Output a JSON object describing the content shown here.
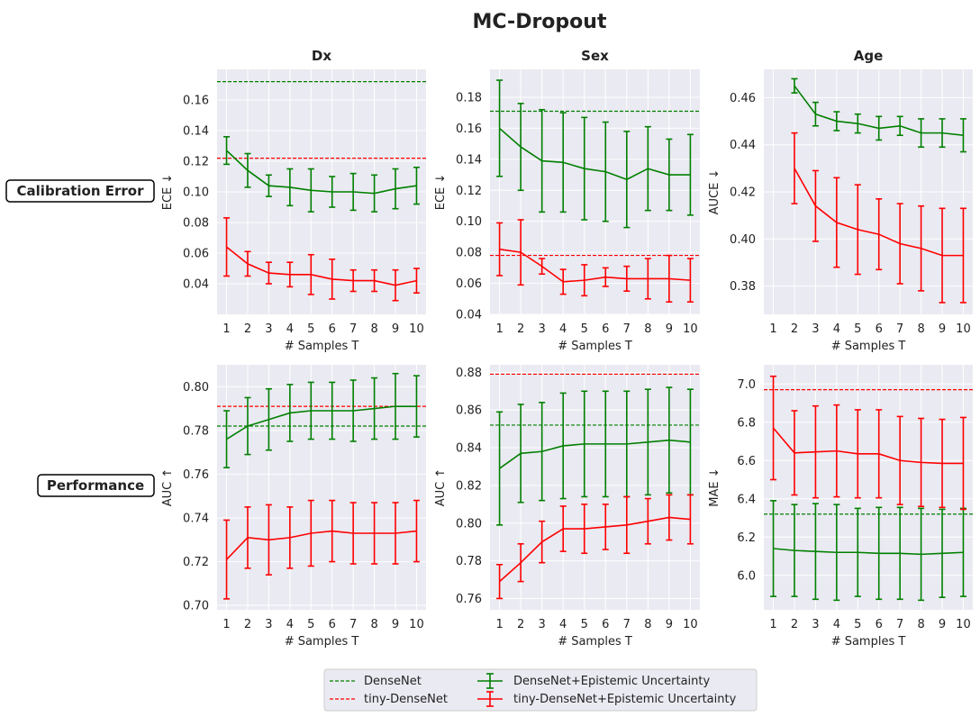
{
  "figure_title": "MC-Dropout",
  "row_labels": [
    "Calibration Error",
    "Performance"
  ],
  "legend": [
    {
      "label": "DenseNet",
      "style": "dashed",
      "color": "#008000"
    },
    {
      "label": "tiny-DenseNet",
      "style": "dashed",
      "color": "#ff0000"
    },
    {
      "label": "DenseNet+Epistemic Uncertainty",
      "style": "errorbar",
      "color": "#008000"
    },
    {
      "label": "tiny-DenseNet+Epistemic Uncertainty",
      "style": "errorbar",
      "color": "#ff0000"
    }
  ],
  "colors": {
    "densenet": "#008000",
    "tiny": "#ff0000",
    "panel_bg": "#eaeaf2",
    "grid": "#ffffff"
  },
  "chart_data": [
    {
      "type": "line",
      "title": "Dx",
      "xlabel": "# Samples T",
      "ylabel": "ECE ↓",
      "x": [
        1,
        2,
        3,
        4,
        5,
        6,
        7,
        8,
        9,
        10
      ],
      "ylim": [
        0.02,
        0.18
      ],
      "yticks": [
        0.04,
        0.06,
        0.08,
        0.1,
        0.12,
        0.14,
        0.16
      ],
      "ytick_labels": [
        "0.04",
        "0.06",
        "0.08",
        "0.10",
        "0.12",
        "0.14",
        "0.16"
      ],
      "reference_lines": [
        {
          "name": "DenseNet",
          "value": 0.172,
          "color": "#008000"
        },
        {
          "name": "tiny-DenseNet",
          "value": 0.122,
          "color": "#ff0000"
        }
      ],
      "series": [
        {
          "name": "DenseNet+Epistemic Uncertainty",
          "color": "#008000",
          "values": [
            0.127,
            0.114,
            0.104,
            0.103,
            0.101,
            0.1,
            0.1,
            0.099,
            0.102,
            0.104
          ],
          "errors": [
            0.009,
            0.011,
            0.007,
            0.012,
            0.014,
            0.01,
            0.012,
            0.012,
            0.013,
            0.012
          ]
        },
        {
          "name": "tiny-DenseNet+Epistemic Uncertainty",
          "color": "#ff0000",
          "values": [
            0.064,
            0.053,
            0.047,
            0.046,
            0.046,
            0.043,
            0.042,
            0.042,
            0.039,
            0.042
          ],
          "errors": [
            0.019,
            0.008,
            0.007,
            0.008,
            0.013,
            0.013,
            0.007,
            0.007,
            0.01,
            0.008
          ]
        }
      ]
    },
    {
      "type": "line",
      "title": "Sex",
      "xlabel": "# Samples T",
      "ylabel": "ECE ↓",
      "x": [
        1,
        2,
        3,
        4,
        5,
        6,
        7,
        8,
        9,
        10
      ],
      "ylim": [
        0.04,
        0.198
      ],
      "yticks": [
        0.04,
        0.06,
        0.08,
        0.1,
        0.12,
        0.14,
        0.16,
        0.18
      ],
      "ytick_labels": [
        "0.04",
        "0.06",
        "0.08",
        "0.10",
        "0.12",
        "0.14",
        "0.16",
        "0.18"
      ],
      "reference_lines": [
        {
          "name": "DenseNet",
          "value": 0.171,
          "color": "#008000"
        },
        {
          "name": "tiny-DenseNet",
          "value": 0.078,
          "color": "#ff0000"
        }
      ],
      "series": [
        {
          "name": "DenseNet+Epistemic Uncertainty",
          "color": "#008000",
          "values": [
            0.16,
            0.148,
            0.139,
            0.138,
            0.134,
            0.132,
            0.127,
            0.134,
            0.13,
            0.13
          ],
          "errors": [
            0.031,
            0.028,
            0.033,
            0.032,
            0.033,
            0.032,
            0.031,
            0.027,
            0.023,
            0.026
          ]
        },
        {
          "name": "tiny-DenseNet+Epistemic Uncertainty",
          "color": "#ff0000",
          "values": [
            0.082,
            0.08,
            0.071,
            0.061,
            0.062,
            0.064,
            0.063,
            0.063,
            0.063,
            0.062
          ],
          "errors": [
            0.017,
            0.021,
            0.005,
            0.008,
            0.01,
            0.006,
            0.008,
            0.013,
            0.015,
            0.014
          ]
        }
      ]
    },
    {
      "type": "line",
      "title": "Age",
      "xlabel": "# Samples T",
      "ylabel": "AUCE ↓",
      "x": [
        1,
        2,
        3,
        4,
        5,
        6,
        7,
        8,
        9,
        10
      ],
      "ylim": [
        0.368,
        0.472
      ],
      "yticks": [
        0.38,
        0.4,
        0.42,
        0.44,
        0.46
      ],
      "ytick_labels": [
        "0.38",
        "0.40",
        "0.42",
        "0.44",
        "0.46"
      ],
      "reference_lines": [],
      "series": [
        {
          "name": "DenseNet+Epistemic Uncertainty",
          "color": "#008000",
          "x": [
            2,
            3,
            4,
            5,
            6,
            7,
            8,
            9,
            10
          ],
          "values": [
            0.465,
            0.453,
            0.45,
            0.449,
            0.447,
            0.448,
            0.445,
            0.445,
            0.444
          ],
          "errors": [
            0.003,
            0.005,
            0.004,
            0.004,
            0.005,
            0.004,
            0.006,
            0.006,
            0.007
          ]
        },
        {
          "name": "tiny-DenseNet+Epistemic Uncertainty",
          "color": "#ff0000",
          "x": [
            2,
            3,
            4,
            5,
            6,
            7,
            8,
            9,
            10
          ],
          "values": [
            0.43,
            0.414,
            0.407,
            0.404,
            0.402,
            0.398,
            0.396,
            0.393,
            0.393
          ],
          "errors": [
            0.015,
            0.015,
            0.019,
            0.019,
            0.015,
            0.017,
            0.018,
            0.02,
            0.02
          ]
        }
      ]
    },
    {
      "type": "line",
      "title": "",
      "xlabel": "# Samples T",
      "ylabel": "AUC ↑",
      "x": [
        1,
        2,
        3,
        4,
        5,
        6,
        7,
        8,
        9,
        10
      ],
      "ylim": [
        0.698,
        0.81
      ],
      "yticks": [
        0.7,
        0.72,
        0.74,
        0.76,
        0.78,
        0.8
      ],
      "ytick_labels": [
        "0.70",
        "0.72",
        "0.74",
        "0.76",
        "0.78",
        "0.80"
      ],
      "reference_lines": [
        {
          "name": "DenseNet",
          "value": 0.782,
          "color": "#008000"
        },
        {
          "name": "tiny-DenseNet",
          "value": 0.791,
          "color": "#ff0000"
        }
      ],
      "series": [
        {
          "name": "DenseNet+Epistemic Uncertainty",
          "color": "#008000",
          "values": [
            0.776,
            0.782,
            0.785,
            0.788,
            0.789,
            0.789,
            0.789,
            0.79,
            0.791,
            0.791
          ],
          "errors": [
            0.013,
            0.013,
            0.014,
            0.013,
            0.013,
            0.013,
            0.014,
            0.014,
            0.015,
            0.014
          ]
        },
        {
          "name": "tiny-DenseNet+Epistemic Uncertainty",
          "color": "#ff0000",
          "values": [
            0.721,
            0.731,
            0.73,
            0.731,
            0.733,
            0.734,
            0.733,
            0.733,
            0.733,
            0.734
          ],
          "errors": [
            0.018,
            0.014,
            0.016,
            0.014,
            0.015,
            0.014,
            0.014,
            0.014,
            0.014,
            0.014
          ]
        }
      ]
    },
    {
      "type": "line",
      "title": "",
      "xlabel": "# Samples T",
      "ylabel": "AUC ↑",
      "x": [
        1,
        2,
        3,
        4,
        5,
        6,
        7,
        8,
        9,
        10
      ],
      "ylim": [
        0.754,
        0.884
      ],
      "yticks": [
        0.76,
        0.78,
        0.8,
        0.82,
        0.84,
        0.86,
        0.88
      ],
      "ytick_labels": [
        "0.76",
        "0.78",
        "0.80",
        "0.82",
        "0.84",
        "0.86",
        "0.88"
      ],
      "reference_lines": [
        {
          "name": "DenseNet",
          "value": 0.852,
          "color": "#008000"
        },
        {
          "name": "tiny-DenseNet",
          "value": 0.879,
          "color": "#ff0000"
        }
      ],
      "series": [
        {
          "name": "DenseNet+Epistemic Uncertainty",
          "color": "#008000",
          "values": [
            0.829,
            0.837,
            0.838,
            0.841,
            0.842,
            0.842,
            0.842,
            0.843,
            0.844,
            0.843
          ],
          "errors": [
            0.03,
            0.026,
            0.026,
            0.028,
            0.028,
            0.028,
            0.028,
            0.028,
            0.028,
            0.028
          ]
        },
        {
          "name": "tiny-DenseNet+Epistemic Uncertainty",
          "color": "#ff0000",
          "values": [
            0.769,
            0.779,
            0.79,
            0.797,
            0.797,
            0.798,
            0.799,
            0.801,
            0.803,
            0.802
          ],
          "errors": [
            0.009,
            0.01,
            0.011,
            0.012,
            0.013,
            0.012,
            0.015,
            0.012,
            0.012,
            0.013
          ]
        }
      ]
    },
    {
      "type": "line",
      "title": "",
      "xlabel": "# Samples T",
      "ylabel": "MAE ↓",
      "x": [
        1,
        2,
        3,
        4,
        5,
        6,
        7,
        8,
        9,
        10
      ],
      "ylim": [
        5.82,
        7.1
      ],
      "yticks": [
        6.0,
        6.2,
        6.4,
        6.6,
        6.8,
        7.0
      ],
      "ytick_labels": [
        "6.0",
        "6.2",
        "6.4",
        "6.6",
        "6.8",
        "7.0"
      ],
      "reference_lines": [
        {
          "name": "DenseNet",
          "value": 6.32,
          "color": "#008000"
        },
        {
          "name": "tiny-DenseNet",
          "value": 6.97,
          "color": "#ff0000"
        }
      ],
      "series": [
        {
          "name": "DenseNet+Epistemic Uncertainty",
          "color": "#008000",
          "values": [
            6.14,
            6.13,
            6.125,
            6.12,
            6.12,
            6.115,
            6.115,
            6.11,
            6.115,
            6.12
          ],
          "errors": [
            0.25,
            0.24,
            0.25,
            0.25,
            0.23,
            0.24,
            0.24,
            0.24,
            0.23,
            0.23
          ]
        },
        {
          "name": "tiny-DenseNet+Epistemic Uncertainty",
          "color": "#ff0000",
          "values": [
            6.77,
            6.64,
            6.645,
            6.65,
            6.635,
            6.635,
            6.6,
            6.59,
            6.585,
            6.585
          ],
          "errors": [
            0.27,
            0.22,
            0.24,
            0.24,
            0.23,
            0.23,
            0.23,
            0.23,
            0.23,
            0.24
          ]
        }
      ]
    }
  ]
}
